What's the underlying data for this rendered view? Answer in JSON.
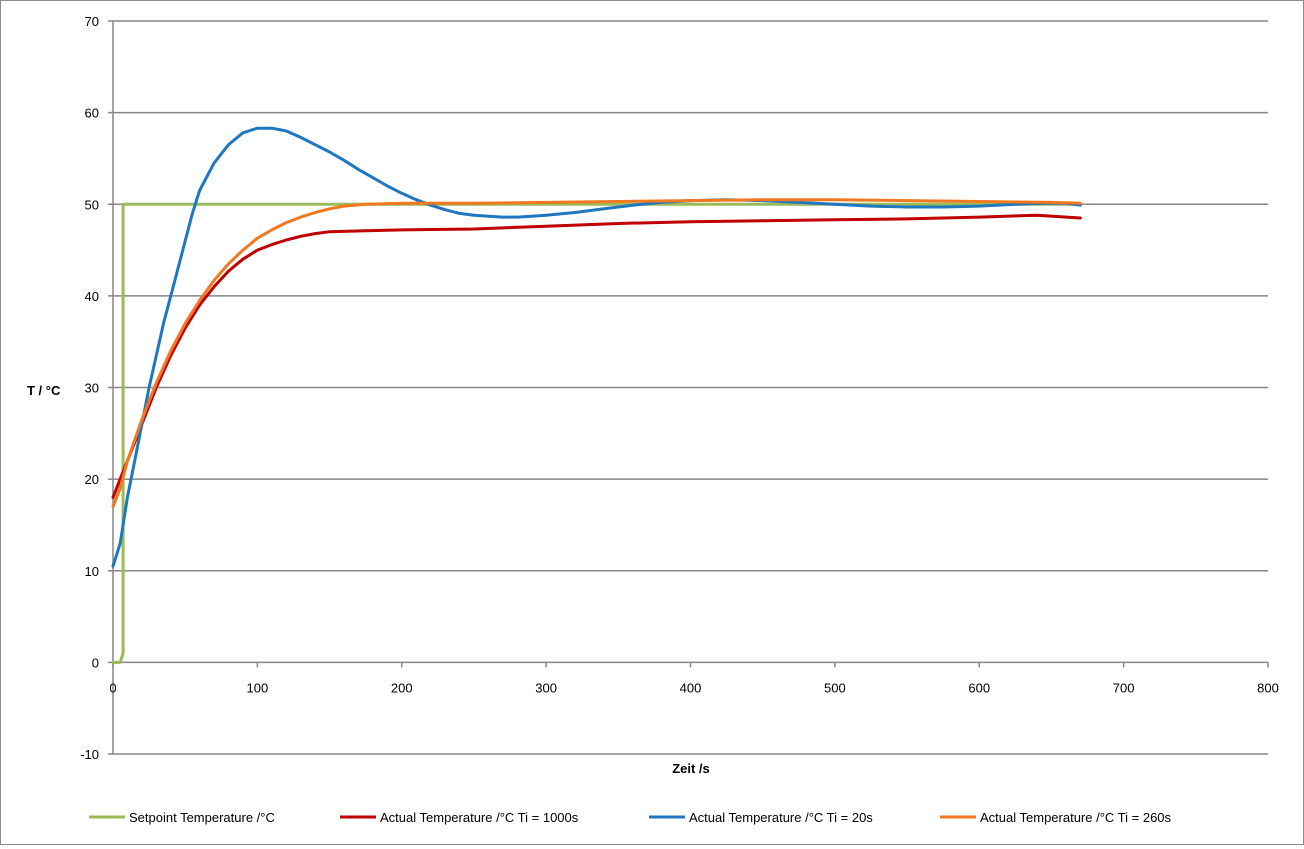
{
  "chart_data": {
    "type": "line",
    "title": "",
    "xlabel": "Zeit /s",
    "ylabel": "T / °C",
    "xlim": [
      0,
      800
    ],
    "ylim": [
      -10,
      70
    ],
    "x_ticks": [
      "0",
      "100",
      "200",
      "300",
      "400",
      "500",
      "600",
      "700",
      "800"
    ],
    "y_ticks": [
      "-10",
      "0",
      "10",
      "20",
      "30",
      "40",
      "50",
      "60",
      "70"
    ],
    "grid": {
      "horizontal": true,
      "vertical": false
    },
    "legend_position": "bottom",
    "series": [
      {
        "name": "Setpoint Temperature /°C",
        "color": "#9bbb59",
        "points": [
          [
            0,
            0
          ],
          [
            5,
            0
          ],
          [
            7,
            1
          ],
          [
            7,
            50
          ],
          [
            10,
            50
          ],
          [
            670,
            50
          ]
        ]
      },
      {
        "name": "Actual Temperature /°C Ti = 1000s",
        "color": "#c00000",
        "points": [
          [
            0,
            18
          ],
          [
            10,
            22
          ],
          [
            20,
            26
          ],
          [
            30,
            30
          ],
          [
            40,
            33.5
          ],
          [
            50,
            36.5
          ],
          [
            60,
            39
          ],
          [
            70,
            41
          ],
          [
            80,
            42.7
          ],
          [
            90,
            44
          ],
          [
            100,
            45
          ],
          [
            110,
            45.6
          ],
          [
            120,
            46.1
          ],
          [
            130,
            46.5
          ],
          [
            140,
            46.8
          ],
          [
            150,
            47
          ],
          [
            175,
            47.1
          ],
          [
            200,
            47.2
          ],
          [
            250,
            47.3
          ],
          [
            300,
            47.6
          ],
          [
            350,
            47.9
          ],
          [
            400,
            48.1
          ],
          [
            450,
            48.2
          ],
          [
            500,
            48.3
          ],
          [
            550,
            48.4
          ],
          [
            600,
            48.6
          ],
          [
            640,
            48.8
          ],
          [
            670,
            48.5
          ]
        ]
      },
      {
        "name": "Actual Temperature /°C Ti = 20s",
        "color": "#1f77c0",
        "points": [
          [
            0,
            10.5
          ],
          [
            5,
            13
          ],
          [
            10,
            18
          ],
          [
            15,
            22
          ],
          [
            20,
            26
          ],
          [
            25,
            30
          ],
          [
            30,
            33.5
          ],
          [
            35,
            37
          ],
          [
            40,
            40
          ],
          [
            45,
            43
          ],
          [
            50,
            46
          ],
          [
            55,
            49
          ],
          [
            60,
            51.5
          ],
          [
            70,
            54.5
          ],
          [
            80,
            56.5
          ],
          [
            90,
            57.8
          ],
          [
            100,
            58.3
          ],
          [
            110,
            58.3
          ],
          [
            120,
            58
          ],
          [
            130,
            57.3
          ],
          [
            140,
            56.5
          ],
          [
            150,
            55.7
          ],
          [
            160,
            54.8
          ],
          [
            170,
            53.8
          ],
          [
            180,
            52.9
          ],
          [
            190,
            52
          ],
          [
            200,
            51.2
          ],
          [
            210,
            50.5
          ],
          [
            220,
            49.9
          ],
          [
            230,
            49.4
          ],
          [
            240,
            49
          ],
          [
            250,
            48.8
          ],
          [
            260,
            48.7
          ],
          [
            270,
            48.6
          ],
          [
            280,
            48.6
          ],
          [
            290,
            48.7
          ],
          [
            300,
            48.8
          ],
          [
            320,
            49.1
          ],
          [
            340,
            49.5
          ],
          [
            360,
            49.9
          ],
          [
            380,
            50.2
          ],
          [
            400,
            50.4
          ],
          [
            425,
            50.5
          ],
          [
            450,
            50.4
          ],
          [
            475,
            50.2
          ],
          [
            500,
            50
          ],
          [
            525,
            49.8
          ],
          [
            550,
            49.7
          ],
          [
            575,
            49.7
          ],
          [
            600,
            49.8
          ],
          [
            625,
            50
          ],
          [
            645,
            50.1
          ],
          [
            660,
            50.1
          ],
          [
            670,
            49.9
          ]
        ]
      },
      {
        "name": "Actual Temperature /°C Ti = 260s",
        "color": "#f07820",
        "points": [
          [
            0,
            17
          ],
          [
            5,
            19
          ],
          [
            10,
            22
          ],
          [
            20,
            26.5
          ],
          [
            30,
            30.5
          ],
          [
            40,
            34
          ],
          [
            50,
            37
          ],
          [
            60,
            39.5
          ],
          [
            70,
            41.7
          ],
          [
            80,
            43.5
          ],
          [
            90,
            45
          ],
          [
            100,
            46.3
          ],
          [
            110,
            47.2
          ],
          [
            120,
            48
          ],
          [
            130,
            48.6
          ],
          [
            140,
            49.1
          ],
          [
            150,
            49.5
          ],
          [
            160,
            49.8
          ],
          [
            175,
            50
          ],
          [
            200,
            50.1
          ],
          [
            250,
            50.1
          ],
          [
            300,
            50.2
          ],
          [
            350,
            50.3
          ],
          [
            400,
            50.4
          ],
          [
            450,
            50.5
          ],
          [
            500,
            50.5
          ],
          [
            550,
            50.4
          ],
          [
            600,
            50.3
          ],
          [
            650,
            50.2
          ],
          [
            670,
            50.1
          ]
        ]
      }
    ]
  }
}
